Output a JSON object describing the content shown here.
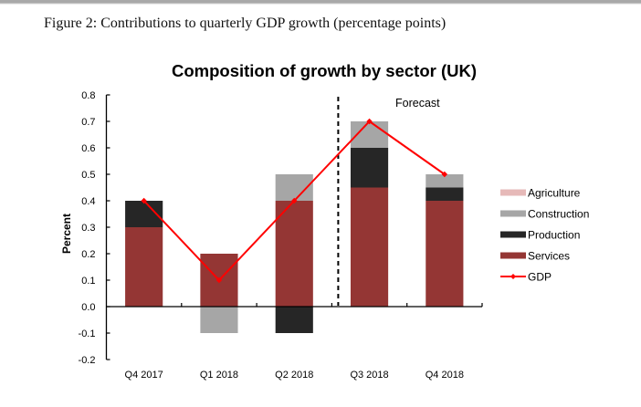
{
  "figure": {
    "caption": "Figure 2: Contributions to quarterly GDP growth (percentage points)"
  },
  "chart_data": {
    "type": "bar",
    "stacked": true,
    "title": "Composition of growth by sector (UK)",
    "xlabel": "",
    "ylabel": "Percent",
    "ylim": [
      -0.2,
      0.8
    ],
    "yticks": [
      "0.8",
      "0.7",
      "0.6",
      "0.5",
      "0.4",
      "0.3",
      "0.2",
      "0.1",
      "0.0",
      "-0.1",
      "-0.2"
    ],
    "ytick_values": [
      0.8,
      0.7,
      0.6,
      0.5,
      0.4,
      0.3,
      0.2,
      0.1,
      0.0,
      -0.1,
      -0.2
    ],
    "grid": false,
    "categories": [
      "Q4 2017",
      "Q1 2018",
      "Q2 2018",
      "Q3 2018",
      "Q4 2018"
    ],
    "series": [
      {
        "name": "Services",
        "kind": "bar",
        "color": "#943634",
        "values": [
          0.3,
          0.2,
          0.4,
          0.45,
          0.4
        ]
      },
      {
        "name": "Production",
        "kind": "bar",
        "color": "#262626",
        "values": [
          0.1,
          0.0,
          -0.1,
          0.15,
          0.05
        ]
      },
      {
        "name": "Construction",
        "kind": "bar",
        "color": "#a6a6a6",
        "values": [
          0.0,
          -0.1,
          0.1,
          0.1,
          0.05
        ]
      },
      {
        "name": "Agriculture",
        "kind": "bar",
        "color": "#e6b9b8",
        "values": [
          0.0,
          0.0,
          0.0,
          0.0,
          0.0
        ]
      },
      {
        "name": "GDP",
        "kind": "line",
        "color": "#ff0000",
        "values": [
          0.4,
          0.1,
          0.4,
          0.7,
          0.5
        ]
      }
    ],
    "legend": {
      "position": "right",
      "order": [
        "Agriculture",
        "Construction",
        "Production",
        "Services",
        "GDP"
      ]
    },
    "annotations": [
      {
        "text": "Forecast",
        "type": "dashed-divider",
        "between": [
          "Q2 2018",
          "Q3 2018"
        ]
      }
    ]
  }
}
